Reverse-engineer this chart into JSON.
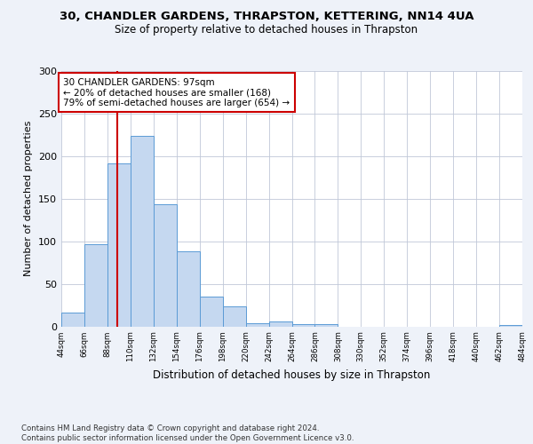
{
  "title": "30, CHANDLER GARDENS, THRAPSTON, KETTERING, NN14 4UA",
  "subtitle": "Size of property relative to detached houses in Thrapston",
  "xlabel": "Distribution of detached houses by size in Thrapston",
  "ylabel": "Number of detached properties",
  "bin_edges": [
    44,
    66,
    88,
    110,
    132,
    154,
    176,
    198,
    220,
    242,
    264,
    286,
    308,
    330,
    352,
    374,
    396,
    418,
    440,
    462,
    484
  ],
  "bar_heights": [
    16,
    97,
    191,
    224,
    143,
    88,
    35,
    24,
    4,
    6,
    3,
    3,
    0,
    0,
    0,
    0,
    0,
    0,
    0,
    2
  ],
  "bar_color": "#c5d8f0",
  "bar_edge_color": "#5b9bd5",
  "property_size": 97,
  "vline_color": "#cc0000",
  "annotation_line1": "30 CHANDLER GARDENS: 97sqm",
  "annotation_line2": "← 20% of detached houses are smaller (168)",
  "annotation_line3": "79% of semi-detached houses are larger (654) →",
  "annotation_box_color": "#ffffff",
  "annotation_box_edge_color": "#cc0000",
  "ylim": [
    0,
    300
  ],
  "yticks": [
    0,
    50,
    100,
    150,
    200,
    250,
    300
  ],
  "background_color": "#eef2f9",
  "plot_background_color": "#ffffff",
  "footer_text": "Contains HM Land Registry data © Crown copyright and database right 2024.\nContains public sector information licensed under the Open Government Licence v3.0.",
  "tick_labels": [
    "44sqm",
    "66sqm",
    "88sqm",
    "110sqm",
    "132sqm",
    "154sqm",
    "176sqm",
    "198sqm",
    "220sqm",
    "242sqm",
    "264sqm",
    "286sqm",
    "308sqm",
    "330sqm",
    "352sqm",
    "374sqm",
    "396sqm",
    "418sqm",
    "440sqm",
    "462sqm",
    "484sqm"
  ]
}
